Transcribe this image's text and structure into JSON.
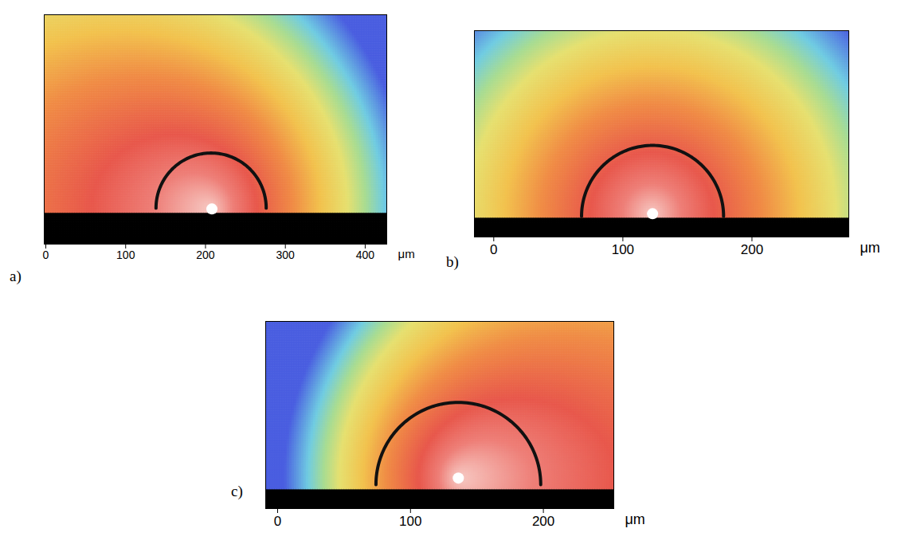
{
  "chart_data": [
    {
      "type": "map",
      "panel": "a)",
      "xlabel": "μm",
      "xlim": [
        -2,
        427
      ],
      "xticks": [
        0,
        100,
        200,
        300,
        400
      ],
      "ylim": [
        0,
        287
      ],
      "tick_labels": "x",
      "interface_y": 40,
      "semicircle": {
        "center": [
          207,
          45
        ],
        "radius": 69
      },
      "point": [
        208,
        44
      ]
    },
    {
      "type": "map",
      "panel": "b)",
      "xlabel": "μm",
      "xlim": [
        -15,
        275
      ],
      "xticks": [
        0,
        100,
        200
      ],
      "ylim": [
        0,
        160
      ],
      "tick_labels": "x",
      "interface_y": 15,
      "semicircle": {
        "center": [
          123,
          16
        ],
        "radius": 55
      },
      "point": [
        123,
        18
      ]
    },
    {
      "type": "map",
      "panel": "c)",
      "xlabel": "μm",
      "xlim": [
        -9,
        253
      ],
      "xticks": [
        0,
        100,
        200
      ],
      "ylim": [
        0,
        141
      ],
      "tick_labels": "x",
      "interface_y": 14,
      "semicircle": {
        "center": [
          136,
          18
        ],
        "radius": 62
      },
      "point": [
        136,
        23
      ]
    }
  ]
}
